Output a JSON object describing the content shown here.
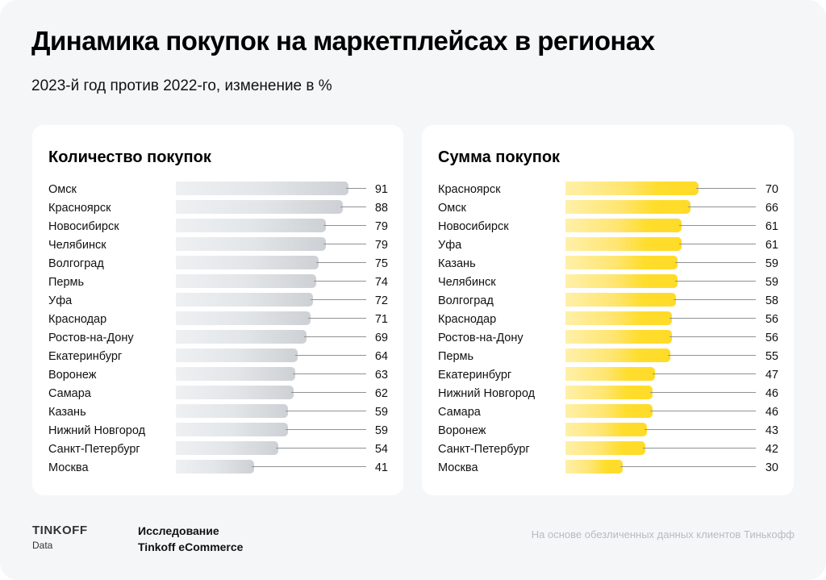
{
  "header": {
    "title": "Динамика покупок на маркетплейсах в регионах",
    "subtitle": "2023-й год против 2022-го, изменение в %"
  },
  "chart_data": [
    {
      "type": "bar",
      "orientation": "horizontal",
      "title": "Количество покупок",
      "xlabel": "",
      "ylabel": "",
      "xlim": [
        0,
        100
      ],
      "grid": false,
      "color_gradient": [
        "#eef0f2",
        "#cdd0d4"
      ],
      "categories": [
        "Омск",
        "Красноярск",
        "Новосибирск",
        "Челябинск",
        "Волгоград",
        "Пермь",
        "Уфа",
        "Краснодар",
        "Ростов-на-Дону",
        "Екатеринбург",
        "Воронеж",
        "Самара",
        "Казань",
        "Нижний Новгород",
        "Санкт-Петербург",
        "Москва"
      ],
      "values": [
        91,
        88,
        79,
        79,
        75,
        74,
        72,
        71,
        69,
        64,
        63,
        62,
        59,
        59,
        54,
        41
      ]
    },
    {
      "type": "bar",
      "orientation": "horizontal",
      "title": "Сумма покупок",
      "xlabel": "",
      "ylabel": "",
      "xlim": [
        0,
        100
      ],
      "grid": false,
      "color_gradient": [
        "#fff0a8",
        "#ffdd2d"
      ],
      "categories": [
        "Красноярск",
        "Омск",
        "Новосибирск",
        "Уфа",
        "Казань",
        "Челябинск",
        "Волгоград",
        "Краснодар",
        "Ростов-на-Дону",
        "Пермь",
        "Екатеринбург",
        "Нижний Новгород",
        "Самара",
        "Воронеж",
        "Санкт-Петербург",
        "Москва"
      ],
      "values": [
        70,
        66,
        61,
        61,
        59,
        59,
        58,
        56,
        56,
        55,
        47,
        46,
        46,
        43,
        42,
        30
      ]
    }
  ],
  "footer": {
    "logo": "TINKOFF",
    "logo_sub": "Data",
    "study_line1": "Исследование",
    "study_line2": "Tinkoff eCommerce",
    "note": "На основе обезличенных данных клиентов Тинькофф"
  }
}
